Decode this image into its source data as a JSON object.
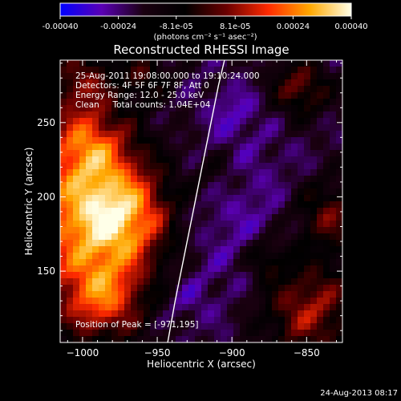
{
  "colorbar": {
    "tick_labels": [
      "-0.00040",
      "-0.00024",
      "-8.1e-05",
      "8.1e-05",
      "0.00024",
      "0.00040"
    ],
    "tick_values": [
      -0.0004,
      -0.00024,
      -8.1e-05,
      8.1e-05,
      0.00024,
      0.0004
    ],
    "range": [
      -0.0004,
      0.0004
    ],
    "unit_label": "(photons cm⁻² s⁻¹ asec⁻²)",
    "colors": [
      "#0000ff",
      "#5a00b4",
      "#1a0010",
      "#000000",
      "#6a0000",
      "#ff2a00",
      "#ffa800",
      "#ffffe8"
    ]
  },
  "chart_data": {
    "type": "heatmap",
    "title": "Reconstructed RHESSI Image",
    "xlabel": "Heliocentric X (arcsec)",
    "ylabel": "Heliocentric Y (arcsec)",
    "xlim": [
      -1015,
      -826
    ],
    "ylim": [
      102,
      292
    ],
    "x_ticks": [
      -1000,
      -950,
      -900,
      -850
    ],
    "x_tick_labels": [
      "−1000",
      "−950",
      "−900",
      "−850"
    ],
    "y_ticks": [
      150,
      200,
      250
    ],
    "y_tick_labels": [
      "150",
      "200",
      "250"
    ],
    "annotations": [
      "25-Aug-2011 19:08:00.000 to 19:10:24.000",
      "Detectors: 4F 5F 6F 7F 8F, Att 0",
      "Energy Range: 12.0 - 25.0 keV",
      "Clean     Total counts: 1.04E+04"
    ],
    "peak_label": "Position of Peak = [-971,195]",
    "peak": [
      -971,
      195
    ],
    "limb_curve": [
      [
        -943,
        102
      ],
      [
        -938,
        130
      ],
      [
        -932,
        160
      ],
      [
        -926,
        190
      ],
      [
        -920,
        220
      ],
      [
        -914,
        250
      ],
      [
        -909,
        275
      ],
      [
        -905,
        292
      ]
    ]
  },
  "footer": {
    "timestamp": "24-Aug-2013 08:17"
  }
}
